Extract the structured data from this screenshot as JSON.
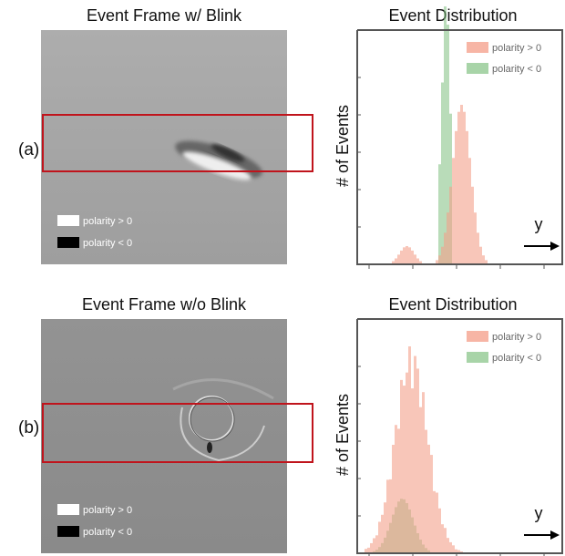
{
  "panels": [
    {
      "label": "(a)",
      "frame": {
        "title": "Event Frame w/ Blink",
        "legend": [
          "polarity > 0",
          "polarity < 0"
        ]
      },
      "distribution": {
        "title": "Event Distribution",
        "y_label": "# of Events",
        "x_label": "y",
        "legend": [
          "polarity > 0",
          "polarity < 0"
        ]
      }
    },
    {
      "label": "(b)",
      "frame": {
        "title": "Event Frame w/o Blink",
        "legend": [
          "polarity > 0",
          "polarity < 0"
        ]
      },
      "distribution": {
        "title": "Event Distribution",
        "y_label": "# of Events",
        "x_label": "y",
        "legend": [
          "polarity > 0",
          "polarity < 0"
        ]
      }
    }
  ]
}
